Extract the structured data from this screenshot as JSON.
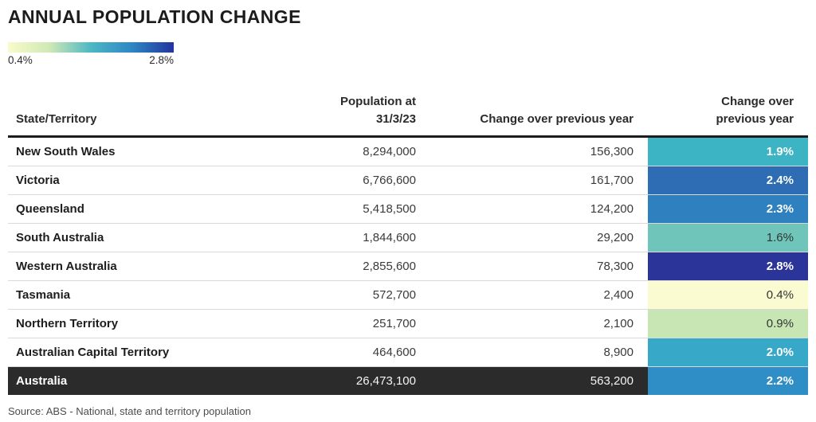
{
  "title": "ANNUAL POPULATION CHANGE",
  "legend": {
    "min_label": "0.4%",
    "max_label": "2.8%",
    "gradient_colors": [
      "#f9fbca",
      "#cfe9b5",
      "#4cb8c4",
      "#2d86c3",
      "#22349e"
    ]
  },
  "table": {
    "header": {
      "col1": "State/Territory",
      "col2_line1": "Population at",
      "col2_line2": "31/3/23",
      "col3": "Change over previous year",
      "col4_line1": "Change over",
      "col4_line2": "previous year"
    },
    "rows": [
      {
        "state": "New South Wales",
        "population": "8,294,000",
        "change": "156,300",
        "pct": "1.9%",
        "pct_bg": "#3db4c3",
        "pct_text": "#ffffff"
      },
      {
        "state": "Victoria",
        "population": "6,766,600",
        "change": "161,700",
        "pct": "2.4%",
        "pct_bg": "#2e6db3",
        "pct_text": "#ffffff"
      },
      {
        "state": "Queensland",
        "population": "5,418,500",
        "change": "124,200",
        "pct": "2.3%",
        "pct_bg": "#2e80bf",
        "pct_text": "#ffffff"
      },
      {
        "state": "South Australia",
        "population": "1,844,600",
        "change": "29,200",
        "pct": "1.6%",
        "pct_bg": "#6fc5b9",
        "pct_text": "#333333"
      },
      {
        "state": "Western Australia",
        "population": "2,855,600",
        "change": "78,300",
        "pct": "2.8%",
        "pct_bg": "#2b3499",
        "pct_text": "#ffffff"
      },
      {
        "state": "Tasmania",
        "population": "572,700",
        "change": "2,400",
        "pct": "0.4%",
        "pct_bg": "#fafbd0",
        "pct_text": "#333333"
      },
      {
        "state": "Northern Territory",
        "population": "251,700",
        "change": "2,100",
        "pct": "0.9%",
        "pct_bg": "#c8e6b4",
        "pct_text": "#333333"
      },
      {
        "state": "Australian Capital Territory",
        "population": "464,600",
        "change": "8,900",
        "pct": "2.0%",
        "pct_bg": "#38a8c9",
        "pct_text": "#ffffff"
      },
      {
        "state": "Australia",
        "population": "26,473,100",
        "change": "563,200",
        "pct": "2.2%",
        "pct_bg": "#2f8ec6",
        "pct_text": "#ffffff",
        "is_total": true
      }
    ]
  },
  "colors": {
    "total_row_bg": "#2b2b2b",
    "header_border": "#1d1d1d",
    "row_divider": "#d9d9d9"
  },
  "source": "Source: ABS - National, state and territory population",
  "chart_data": {
    "type": "table",
    "title": "ANNUAL POPULATION CHANGE",
    "columns": [
      "State/Territory",
      "Population at 31/3/23",
      "Change over previous year",
      "Change over previous year (%)"
    ],
    "rows": [
      [
        "New South Wales",
        8294000,
        156300,
        1.9
      ],
      [
        "Victoria",
        6766600,
        161700,
        2.4
      ],
      [
        "Queensland",
        5418500,
        124200,
        2.3
      ],
      [
        "South Australia",
        1844600,
        29200,
        1.6
      ],
      [
        "Western Australia",
        2855600,
        78300,
        2.8
      ],
      [
        "Tasmania",
        572700,
        2400,
        0.4
      ],
      [
        "Northern Territory",
        251700,
        2100,
        0.9
      ],
      [
        "Australian Capital Territory",
        464600,
        8900,
        2.0
      ],
      [
        "Australia",
        26473100,
        563200,
        2.2
      ]
    ],
    "color_scale": {
      "min": 0.4,
      "max": 2.8,
      "palette": "YlGnBu",
      "applies_to_column": "Change over previous year (%)"
    },
    "source": "Source: ABS - National, state and territory population"
  }
}
